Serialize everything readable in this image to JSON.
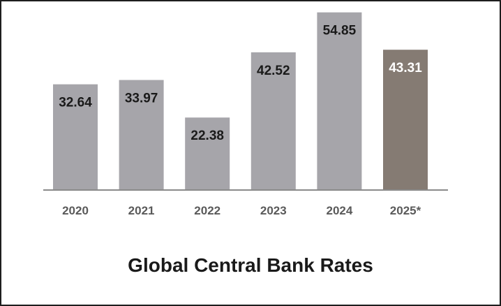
{
  "chart_data": {
    "type": "bar",
    "title": "Global Central Bank Rates",
    "categories": [
      "2020",
      "2021",
      "2022",
      "2023",
      "2024",
      "2025*"
    ],
    "values": [
      32.64,
      33.97,
      22.38,
      42.52,
      54.85,
      43.31
    ],
    "value_labels": [
      "32.64",
      "33.97",
      "22.38",
      "42.52",
      "54.85",
      "43.31"
    ],
    "highlighted_category": "2025*",
    "xlabel": "",
    "ylabel": "",
    "ylim": [
      0,
      55
    ],
    "grid": false,
    "colors": {
      "bar": "#a6a5aa",
      "bar_highlight": "#857b73",
      "label": "#1a1a1a",
      "label_highlight": "#ffffff",
      "baseline": "#8a8a8a"
    }
  }
}
